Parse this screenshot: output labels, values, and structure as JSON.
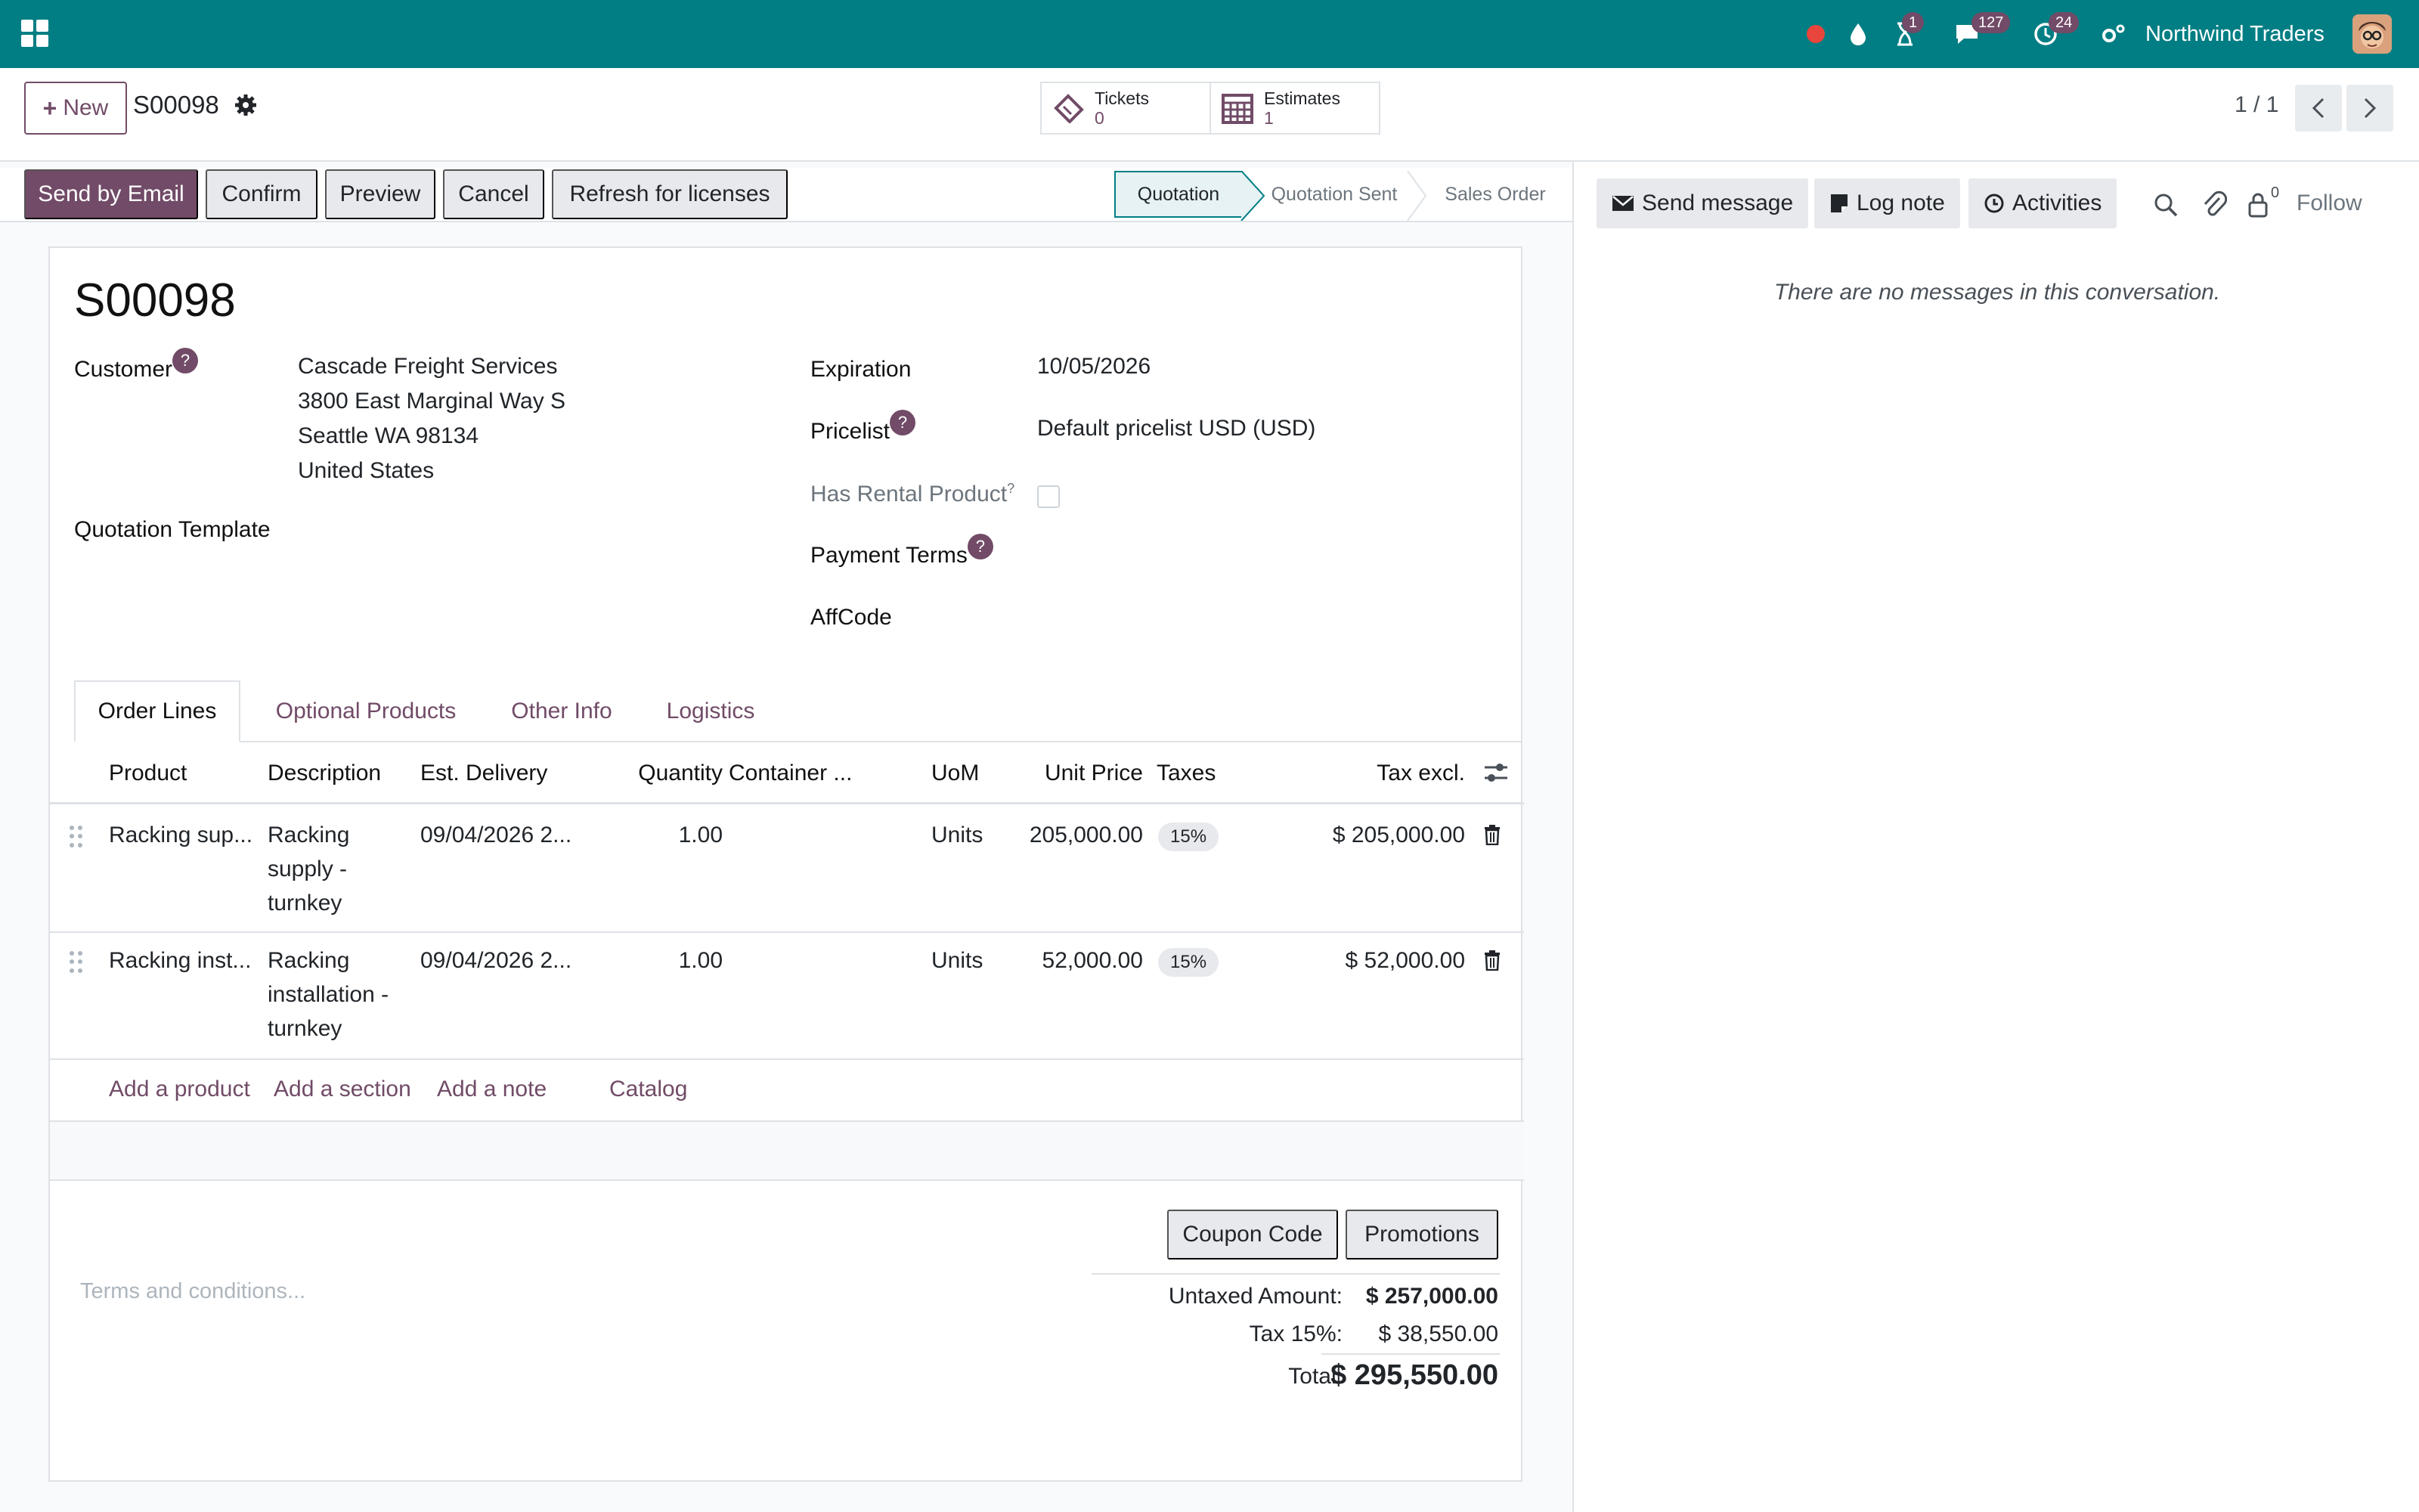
{
  "topbar": {
    "company": "Northwind Traders",
    "activity_count": "1",
    "message_count": "127",
    "clock_count": "24",
    "colors": {
      "bar": "#017e84",
      "badge": "#714b67",
      "recording": "#e8453c"
    }
  },
  "control_panel": {
    "new_label": "New",
    "record_name": "S00098",
    "smart_buttons": [
      {
        "label": "Tickets",
        "count": "0",
        "icon": "ticket-icon"
      },
      {
        "label": "Estimates",
        "count": "1",
        "icon": "calendar-grid-icon"
      }
    ],
    "pager": "1 / 1"
  },
  "actions": {
    "send_by_email": "Send by Email",
    "confirm": "Confirm",
    "preview": "Preview",
    "cancel": "Cancel",
    "refresh": "Refresh for licenses"
  },
  "stages": [
    "Quotation",
    "Quotation Sent",
    "Sales Order"
  ],
  "chatter": {
    "send_message": "Send message",
    "log_note": "Log note",
    "activities": "Activities",
    "followers_count": "0",
    "follow": "Follow",
    "empty": "There are no messages in this conversation."
  },
  "form": {
    "title": "S00098",
    "customer_label": "Customer",
    "customer_lines": [
      "Cascade Freight Services",
      "3800 East Marginal Way S",
      "Seattle WA 98134",
      "United States"
    ],
    "quotation_template_label": "Quotation Template",
    "expiration_label": "Expiration",
    "expiration_value": "10/05/2026",
    "pricelist_label": "Pricelist",
    "pricelist_value": "Default pricelist USD  (USD)",
    "rental_label": "Has Rental Product",
    "rental_checked": false,
    "payment_terms_label": "Payment Terms",
    "affcode_label": "AffCode",
    "help_glyph": "?"
  },
  "tabs": [
    "Order Lines",
    "Optional Products",
    "Other Info",
    "Logistics"
  ],
  "table": {
    "headers": [
      "Product",
      "Description",
      "Est. Delivery",
      "Quantity",
      "Container ...",
      "UoM",
      "Unit Price",
      "Taxes",
      "Tax excl."
    ],
    "rows": [
      {
        "product": "Racking sup...",
        "description": [
          "Racking",
          "supply -",
          "turnkey"
        ],
        "delivery": "09/04/2026 2...",
        "quantity": "1.00",
        "uom": "Units",
        "unit_price": "205,000.00",
        "taxes": "15%",
        "subtotal": "$ 205,000.00"
      },
      {
        "product": "Racking inst...",
        "description": [
          "Racking",
          "installation -",
          "turnkey"
        ],
        "delivery": "09/04/2026 2...",
        "quantity": "1.00",
        "uom": "Units",
        "unit_price": "52,000.00",
        "taxes": "15%",
        "subtotal": "$ 52,000.00"
      }
    ],
    "add_product": "Add a product",
    "add_section": "Add a section",
    "add_note": "Add a note",
    "catalog": "Catalog"
  },
  "footer": {
    "terms_placeholder": "Terms and conditions...",
    "coupon_code": "Coupon Code",
    "promotions": "Promotions",
    "untaxed_label": "Untaxed Amount:",
    "untaxed_value": "$ 257,000.00",
    "tax_label": "Tax 15%:",
    "tax_value": "$ 38,550.00",
    "total_label": "Total:",
    "total_value": "$ 295,550.00"
  }
}
